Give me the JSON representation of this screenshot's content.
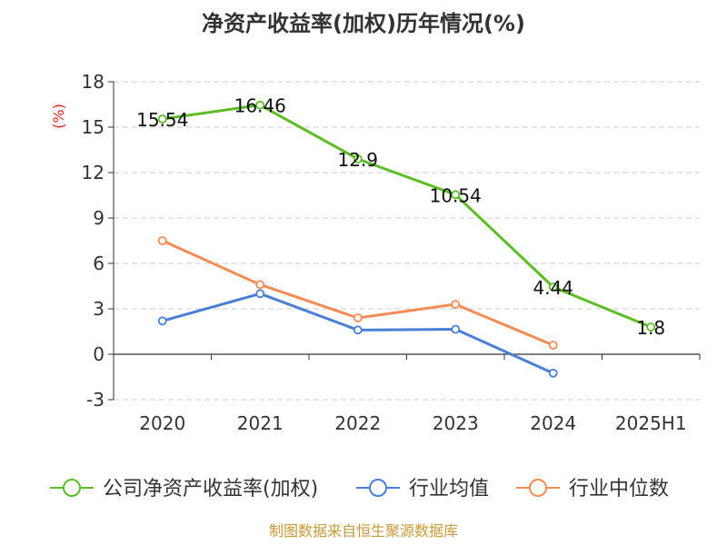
{
  "chart_data": {
    "type": "line",
    "title": "净资产收益率(加权)历年情况(%)",
    "ylabel": "(%)",
    "xlabel": "",
    "categories": [
      "2020",
      "2021",
      "2022",
      "2023",
      "2024",
      "2025H1"
    ],
    "ylim": [
      -3,
      18
    ],
    "yticks": [
      -3,
      0,
      3,
      6,
      9,
      12,
      15,
      18
    ],
    "grid": true,
    "legend_position": "bottom",
    "series": [
      {
        "name": "公司净资产收益率(加权)",
        "color": "#5dbd26",
        "values": [
          15.54,
          16.46,
          12.9,
          10.54,
          4.44,
          1.8
        ],
        "labels": [
          "15.54",
          "16.46",
          "12.9",
          "10.54",
          "4.44",
          "1.8"
        ]
      },
      {
        "name": "行业均值",
        "color": "#4a7fd6",
        "values": [
          2.2,
          4.0,
          1.6,
          1.65,
          -1.25,
          null
        ]
      },
      {
        "name": "行业中位数",
        "color": "#f48c57",
        "values": [
          7.5,
          4.6,
          2.4,
          3.3,
          0.6,
          null
        ]
      }
    ],
    "source": "制图数据来自恒生聚源数据库"
  }
}
